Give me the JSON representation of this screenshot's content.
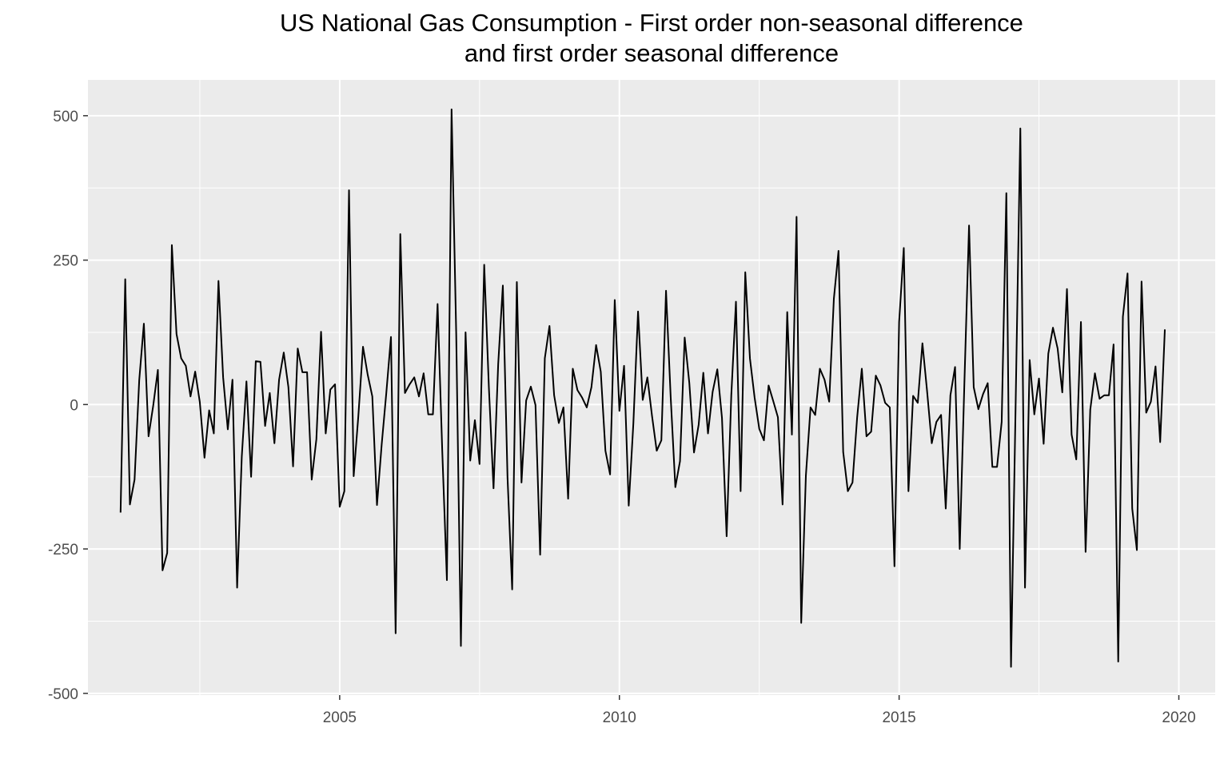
{
  "chart_data": {
    "type": "line",
    "title": "US National Gas Consumption - First order non-seasonal difference",
    "subtitle": "and first order seasonal difference",
    "xlabel": "",
    "ylabel": "",
    "xlim": [
      2000.5,
      2020.65
    ],
    "ylim": [
      -503,
      562
    ],
    "x_ticks": [
      2005,
      2010,
      2015,
      2020
    ],
    "x_tick_labels": [
      "2005",
      "2010",
      "2015",
      "2020"
    ],
    "y_ticks": [
      500,
      250,
      0,
      -250,
      -500
    ],
    "y_tick_labels": [
      "500",
      "250",
      "0",
      "-250",
      "-500"
    ],
    "grid": true,
    "legend": "none",
    "line_color": "#000000",
    "panel_background": "#ebebeb",
    "grid_color": "#ffffff",
    "x_start": 2001.0833,
    "x_step": 0.083333,
    "series": [
      {
        "values": [
          -187,
          217,
          -173,
          -130,
          42,
          140,
          -55,
          -2,
          60,
          -287,
          -257,
          276,
          122,
          80,
          67,
          14,
          57,
          4,
          -92,
          -10,
          -50,
          214,
          47,
          -43,
          43,
          -317,
          -90,
          40,
          -125,
          75,
          74,
          -37,
          20,
          -67,
          43,
          90,
          30,
          -107,
          97,
          56,
          56,
          -130,
          -60,
          126,
          -50,
          26,
          35,
          -177,
          -150,
          371,
          -124,
          -20,
          100,
          52,
          14,
          -174,
          -70,
          20,
          117,
          -396,
          295,
          20,
          35,
          47,
          14,
          54,
          -17,
          -17,
          174,
          -80,
          -304,
          511,
          120,
          -418,
          125,
          -97,
          -27,
          -103,
          242,
          30,
          -145,
          70,
          206,
          -126,
          -320,
          212,
          -135,
          7,
          31,
          -1,
          -260,
          80,
          136,
          16,
          -32,
          -5,
          -163,
          62,
          25,
          12,
          -5,
          30,
          103,
          57,
          -80,
          -121,
          181,
          -11,
          67,
          -175,
          -32,
          161,
          8,
          47,
          -20,
          -80,
          -62,
          197,
          13,
          -143,
          -98,
          116,
          37,
          -83,
          -35,
          55,
          -50,
          22,
          61,
          -23,
          -228,
          16,
          178,
          -150,
          229,
          80,
          12,
          -42,
          -62,
          33,
          6,
          -22,
          -173,
          160,
          -52,
          325,
          -378,
          -123,
          -5,
          -18,
          62,
          43,
          5,
          183,
          266,
          -82,
          -150,
          -135,
          -22,
          62,
          -55,
          -47,
          50,
          33,
          3,
          -5,
          -280,
          143,
          271,
          -150,
          15,
          3,
          106,
          23,
          -67,
          -30,
          -18,
          -180,
          16,
          65,
          -250,
          37,
          310,
          30,
          -8,
          18,
          37,
          -108,
          -108,
          -30,
          366,
          -454,
          4,
          478,
          -317,
          77,
          -17,
          45,
          -68,
          88,
          133,
          97,
          21,
          200,
          -52,
          -95,
          143,
          -255,
          -9,
          54,
          10,
          16,
          16,
          104,
          -445,
          152,
          227,
          -180,
          -252,
          213,
          -14,
          5,
          66,
          -65,
          130
        ]
      }
    ]
  }
}
